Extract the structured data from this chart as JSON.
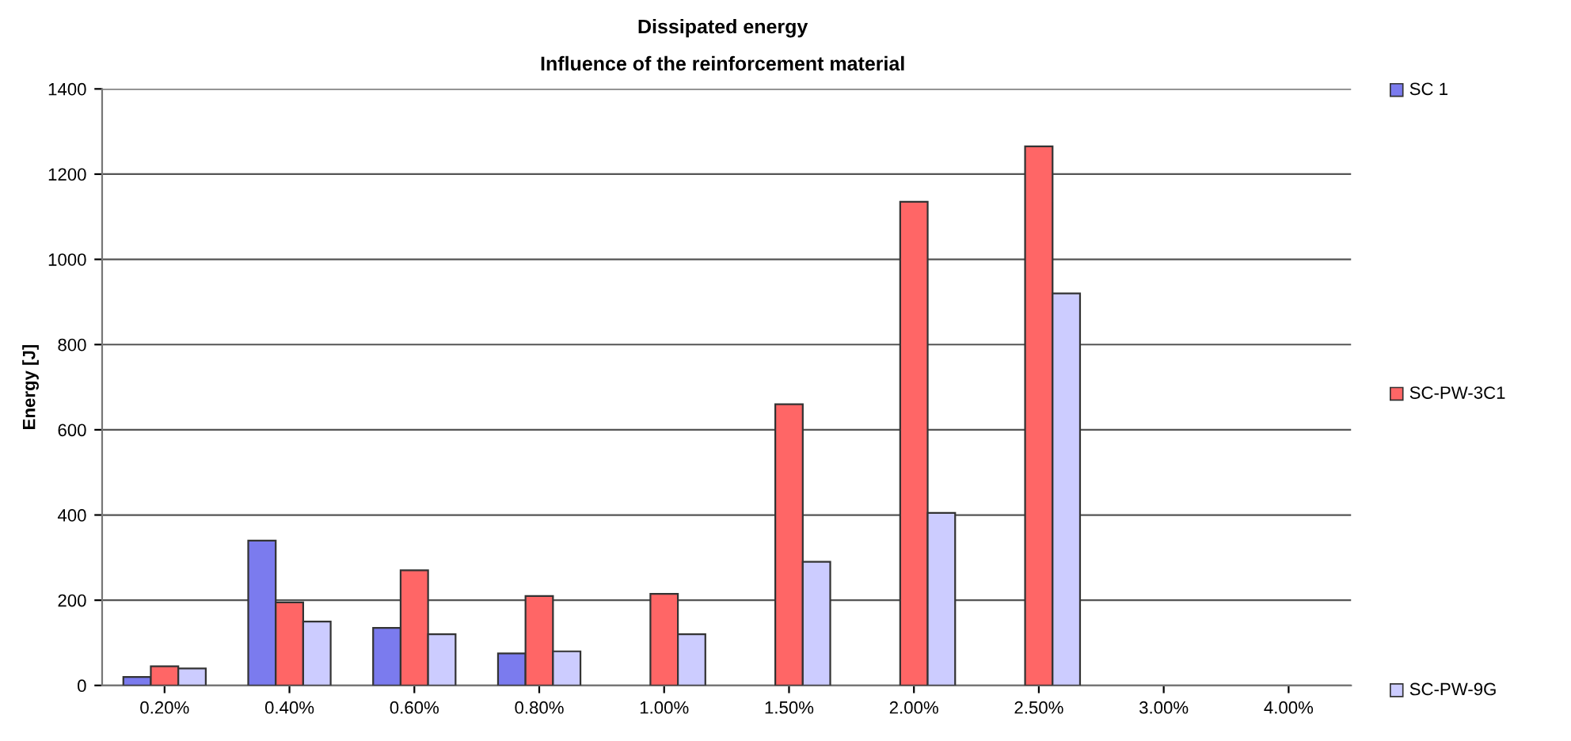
{
  "chart_data": {
    "type": "bar",
    "title": "Dissipated energy",
    "subtitle": "Influence of the reinforcement material",
    "ylabel": "Energy [J]",
    "categories": [
      "0.20%",
      "0.40%",
      "0.60%",
      "0.80%",
      "1.00%",
      "1.50%",
      "2.00%",
      "2.50%",
      "3.00%",
      "4.00%"
    ],
    "series": [
      {
        "name": "SC 1",
        "color": "#7b7bee",
        "values": [
          20,
          340,
          135,
          75,
          null,
          null,
          null,
          null,
          null,
          null
        ]
      },
      {
        "name": "SC-PW-3C1",
        "color": "#ff6666",
        "values": [
          45,
          195,
          270,
          210,
          215,
          660,
          1135,
          1265,
          null,
          null
        ]
      },
      {
        "name": "SC-PW-9G",
        "color": "#ccccff",
        "values": [
          40,
          150,
          120,
          80,
          120,
          290,
          405,
          920,
          null,
          null
        ]
      }
    ],
    "ylim": [
      0,
      1400
    ],
    "yticks": [
      0,
      200,
      400,
      600,
      800,
      1000,
      1200,
      1400
    ],
    "grid": "y",
    "legend": "right"
  }
}
